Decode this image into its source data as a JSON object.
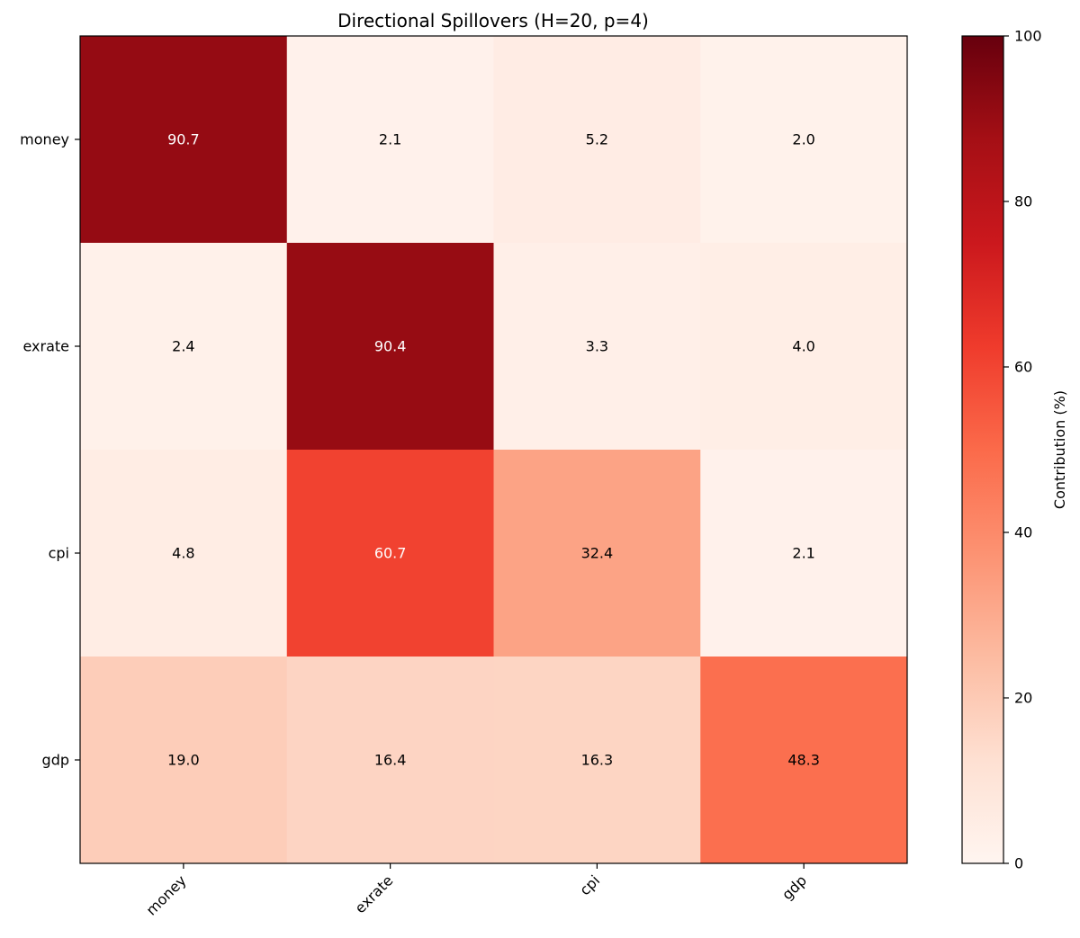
{
  "chart_data": {
    "type": "heatmap",
    "title": "Directional Spillovers (H=20, p=4)",
    "rows": [
      "money",
      "exrate",
      "cpi",
      "gdp"
    ],
    "columns": [
      "money",
      "exrate",
      "cpi",
      "gdp"
    ],
    "values": [
      [
        90.7,
        2.1,
        5.2,
        2.0
      ],
      [
        2.4,
        90.4,
        3.3,
        4.0
      ],
      [
        4.8,
        60.7,
        32.4,
        2.1
      ],
      [
        19.0,
        16.4,
        16.3,
        48.3
      ]
    ],
    "value_labels": [
      [
        "90.7",
        "2.1",
        "5.2",
        "2.0"
      ],
      [
        "2.4",
        "90.4",
        "3.3",
        "4.0"
      ],
      [
        "4.8",
        "60.7",
        "32.4",
        "2.1"
      ],
      [
        "19.0",
        "16.4",
        "16.3",
        "48.3"
      ]
    ],
    "colormap": "Reds",
    "vmin": 0,
    "vmax": 100,
    "colorbar": {
      "label": "Contribution (%)",
      "ticks": [
        0,
        20,
        40,
        60,
        80,
        100
      ],
      "tick_labels": [
        "0",
        "20",
        "40",
        "60",
        "80",
        "100"
      ]
    },
    "grid": false,
    "colors": {
      "low": "#fff5f0",
      "high": "#67000d",
      "text_dark": "#000000",
      "text_light": "#ffffff"
    }
  }
}
